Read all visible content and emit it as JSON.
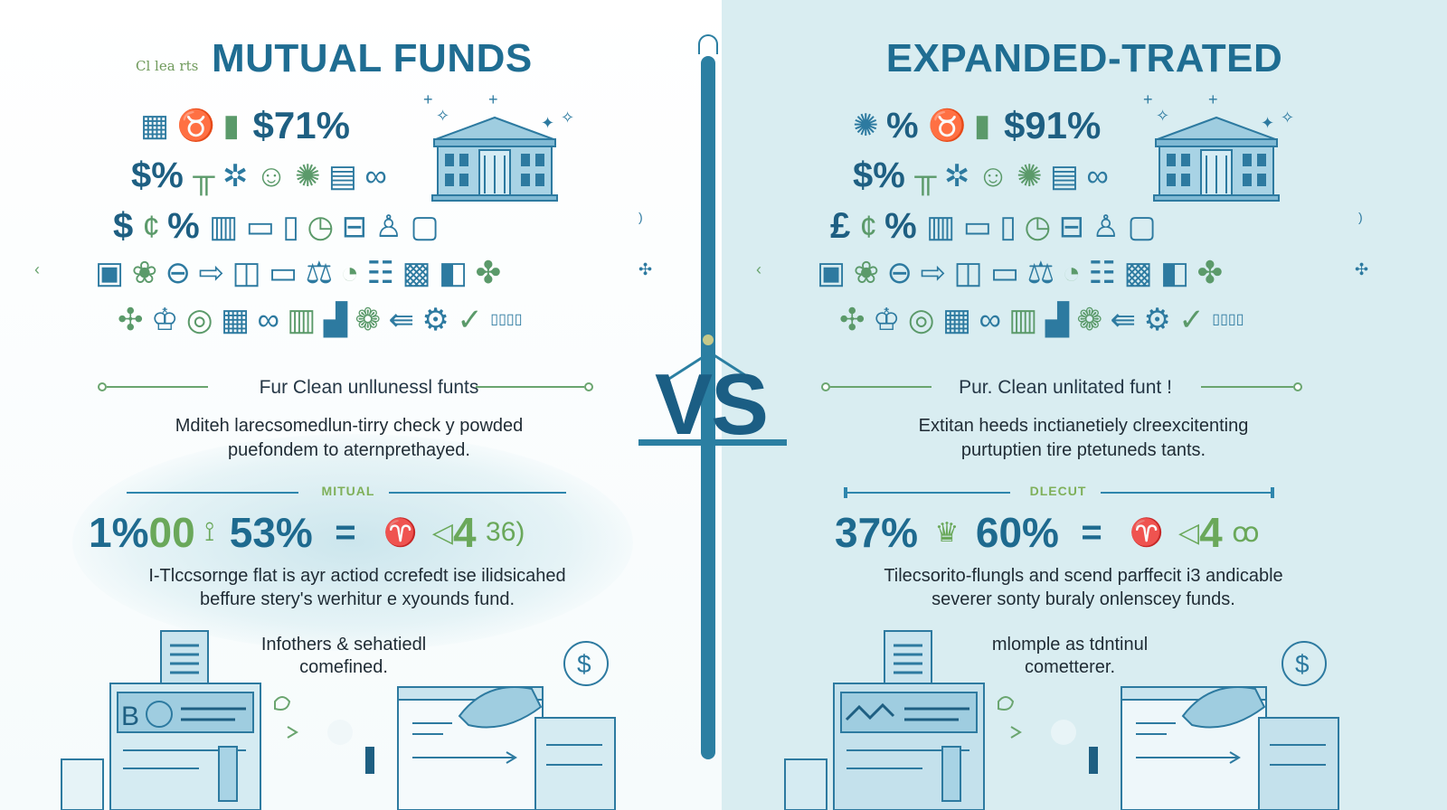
{
  "left": {
    "kicker": "Cl lea rts",
    "title": "MUTUAL FUNDS",
    "top_stat": "$71%",
    "row2_prefix": "$%",
    "row3_prefix": "$",
    "row3_pct": "%",
    "divider_label": "Fur Clean unllunessl funts",
    "description_line1": "Mditeh larecsomedlun-tirry check y powded",
    "description_line2": "puefondem to aternprethayed.",
    "sub_label": "MITUAL",
    "stat1": "1%",
    "stat2": "00",
    "stat3": "53%",
    "equals": "=",
    "stat4": "4",
    "stat5": "36)",
    "caption1_line1": "I-Tlccsornge flat is ayr actiod ccrefedt ise ilidsicahed",
    "caption1_line2": "beffure stery's werhitur e xyounds fund.",
    "caption2_line1": "Infothers & sehatiedl",
    "caption2_line2": "comefined."
  },
  "right": {
    "title": "EXPANDED-TRATED",
    "top_stat": "$91%",
    "row1_prefix": "%",
    "row2_prefix": "$%",
    "row3_prefix": "£",
    "row3_pct": "%",
    "divider_label": "Pur. Clean unlitated funt !",
    "description_line1": "Extitan heeds inctianetiely clreexcitenting",
    "description_line2": "purtuptien tire ptetuneds tants.",
    "sub_label": "DLECUT",
    "stat1": "37%",
    "stat2": "60%",
    "equals": "=",
    "stat3": "4",
    "caption1_line1": "Tilecsorito-flungls and scend parffecit i3 andicable",
    "caption1_line2": "severer sonty buraly onlenscey funds.",
    "caption2_line1": "mlomple as tdntinul",
    "caption2_line2": "cometterer."
  },
  "center": {
    "vs": "VS"
  },
  "colors": {
    "primary_blue": "#1f6d92",
    "accent_green": "#6aa85a",
    "right_background": "#d9edf1"
  },
  "icons": [
    "calculator-icon",
    "bar-chart-icon",
    "piggy-bank-icon",
    "bank-building-icon",
    "coin-icon",
    "lightbulb-icon",
    "document-icon",
    "laptop-icon",
    "dollar-sign-icon",
    "checkmark-icon",
    "gear-icon",
    "lock-icon"
  ]
}
